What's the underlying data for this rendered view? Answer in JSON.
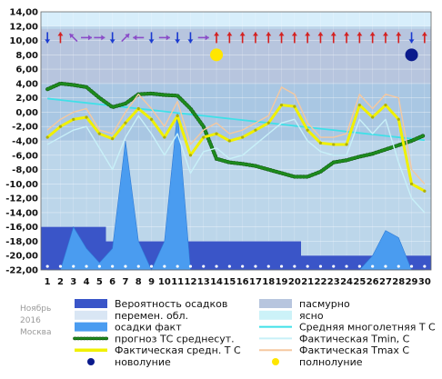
{
  "caption": [
    "Ноябрь",
    "2016",
    "Москва"
  ],
  "legend": [
    {
      "label": "Вероятность осадков",
      "kind": "rect",
      "color": "#3a55c8"
    },
    {
      "label": "пасмурно",
      "kind": "rect",
      "color": "#b7c5de"
    },
    {
      "label": "перемен. обл.",
      "kind": "rect",
      "color": "#d9e6f4"
    },
    {
      "label": "ясно",
      "kind": "rect",
      "color": "#ccf2f8"
    },
    {
      "label": "осадки факт",
      "kind": "rect",
      "color": "#4a9cf0"
    },
    {
      "label": "Средняя многолетняя Т С",
      "kind": "line",
      "color": "#3fe0e8"
    },
    {
      "label": "прогноз ТС среднесут.",
      "kind": "dotted",
      "color": "#1d8a1d"
    },
    {
      "label": "Фактическая Tmin, С",
      "kind": "line",
      "color": "#c8f0f8"
    },
    {
      "label": "Фактическая средн. Т С",
      "kind": "thick",
      "color": "#f0f000"
    },
    {
      "label": "Фактическая Tmax С",
      "kind": "line",
      "color": "#f5c8a0"
    },
    {
      "label": "новолуние",
      "kind": "dot",
      "color": "#0a1a8c"
    },
    {
      "label": "полнолуние",
      "kind": "dot",
      "color": "#ffe600"
    }
  ],
  "chart_data": {
    "type": "line",
    "title": "",
    "xlabel": "",
    "ylabel": "",
    "x": [
      1,
      2,
      3,
      4,
      5,
      6,
      7,
      8,
      9,
      10,
      11,
      12,
      13,
      14,
      15,
      16,
      17,
      18,
      19,
      20,
      21,
      22,
      23,
      24,
      25,
      26,
      27,
      28,
      29,
      30
    ],
    "ylim": [
      -22,
      14
    ],
    "yticks": [
      14,
      12,
      10,
      8,
      6,
      4,
      2,
      0,
      -2,
      -4,
      -6,
      -8,
      -10,
      -12,
      -14,
      -16,
      -18,
      -20,
      -22
    ],
    "ytick_labels": [
      "14,00",
      "12,00",
      "10,00",
      "8,00",
      "6,00",
      "4,00",
      "2,00",
      "0,00",
      "-2,00",
      "-4,00",
      "-6,00",
      "-8,00",
      "-10,00",
      "-12,00",
      "-14,00",
      "-16,00",
      "-18,00",
      "-20,00",
      "-22,00"
    ],
    "series": [
      {
        "name": "Средняя многолетняя Т С",
        "color": "#3fe0e8",
        "values": [
          1.9,
          1.7,
          1.5,
          1.3,
          1.1,
          0.9,
          0.7,
          0.5,
          0.3,
          0.1,
          -0.1,
          -0.3,
          -0.5,
          -0.7,
          -0.9,
          -1.1,
          -1.3,
          -1.5,
          -1.7,
          -1.9,
          -2.1,
          -2.3,
          -2.5,
          -2.7,
          -2.9,
          -3.1,
          -3.3,
          -3.5,
          -3.7,
          -3.9
        ]
      },
      {
        "name": "прогноз ТС среднесут.",
        "color": "#1d8a1d",
        "values": [
          3.2,
          4.0,
          3.8,
          3.5,
          2.0,
          0.7,
          1.2,
          2.5,
          2.6,
          2.4,
          2.3,
          0.5,
          -2.0,
          -6.5,
          -7.0,
          -7.2,
          -7.5,
          -8.0,
          -8.5,
          -9.0,
          -9.0,
          -8.3,
          -7.0,
          -6.7,
          -6.2,
          -5.8,
          -5.2,
          -4.6,
          -4.0,
          -3.2
        ]
      },
      {
        "name": "Фактическая Tmin, С",
        "color": "#c8f0f8",
        "values": [
          -4.5,
          -3.5,
          -2.5,
          -2.0,
          -5.0,
          -8.0,
          -3.5,
          -0.5,
          -3.0,
          -6.0,
          -3.0,
          -8.5,
          -5.5,
          -5.0,
          -6.5,
          -6.0,
          -4.5,
          -3.0,
          -1.5,
          -1.0,
          -4.0,
          -5.5,
          -6.0,
          -6.0,
          -1.0,
          -3.0,
          -1.0,
          -7.0,
          -12.0,
          -14.0
        ]
      },
      {
        "name": "Фактическая Tmax С",
        "color": "#f5c8a0",
        "values": [
          -2.5,
          -1.0,
          0.0,
          0.5,
          -2.5,
          -3.0,
          0.0,
          2.5,
          0.5,
          -2.0,
          1.5,
          -4.5,
          -2.5,
          -1.5,
          -3.0,
          -2.5,
          -1.5,
          -0.5,
          3.5,
          2.5,
          -1.5,
          -3.5,
          -3.5,
          -3.0,
          2.5,
          0.5,
          2.5,
          2.0,
          -8.0,
          -10.0
        ]
      },
      {
        "name": "Фактическая средн. Т С",
        "color": "#f0f000",
        "values": [
          -3.5,
          -2.0,
          -1.0,
          -0.7,
          -3.0,
          -3.7,
          -1.5,
          0.5,
          -1.0,
          -3.5,
          -0.5,
          -6.0,
          -3.5,
          -3.0,
          -4.0,
          -3.5,
          -2.5,
          -1.5,
          1.0,
          0.8,
          -2.5,
          -4.3,
          -4.5,
          -4.5,
          1.0,
          -0.7,
          1.0,
          -1.0,
          -10.0,
          -11.0
        ]
      }
    ],
    "precipitation_fact": [
      -22,
      -22,
      -16,
      -19,
      -21,
      -19,
      -4,
      -18,
      -22,
      -18,
      0,
      -22,
      -22,
      -22,
      -22,
      -22,
      -22,
      -22,
      -22,
      -22,
      -22,
      -22,
      -22,
      -22,
      -22,
      -20,
      -16.5,
      -17.5,
      -22,
      -22
    ],
    "precipitation_probability": [
      -16,
      -16,
      -16,
      -16,
      -16,
      -18,
      -18,
      -18,
      -18,
      -18,
      -18,
      -18,
      -18,
      -18,
      -18,
      -18,
      -18,
      -18,
      -18,
      -18,
      -20,
      -20,
      -20,
      -20,
      -20,
      -20,
      -20,
      -20,
      -20,
      -20
    ],
    "cloud_bands": {
      "overcast_ylim": [
        4,
        11.6
      ],
      "variable_ylim": [
        -4,
        4
      ]
    },
    "moon": {
      "new_day": 29,
      "full_day": 14
    },
    "wind_arrows": [
      "down",
      "up",
      "up-left",
      "right",
      "right",
      "down",
      "up-right",
      "left",
      "down",
      "right",
      "down",
      "down",
      "right",
      "up",
      "up",
      "up",
      "up",
      "up",
      "up",
      "up",
      "up",
      "up",
      "up",
      "up",
      "up",
      "up",
      "up",
      "up",
      "down",
      "up"
    ]
  }
}
